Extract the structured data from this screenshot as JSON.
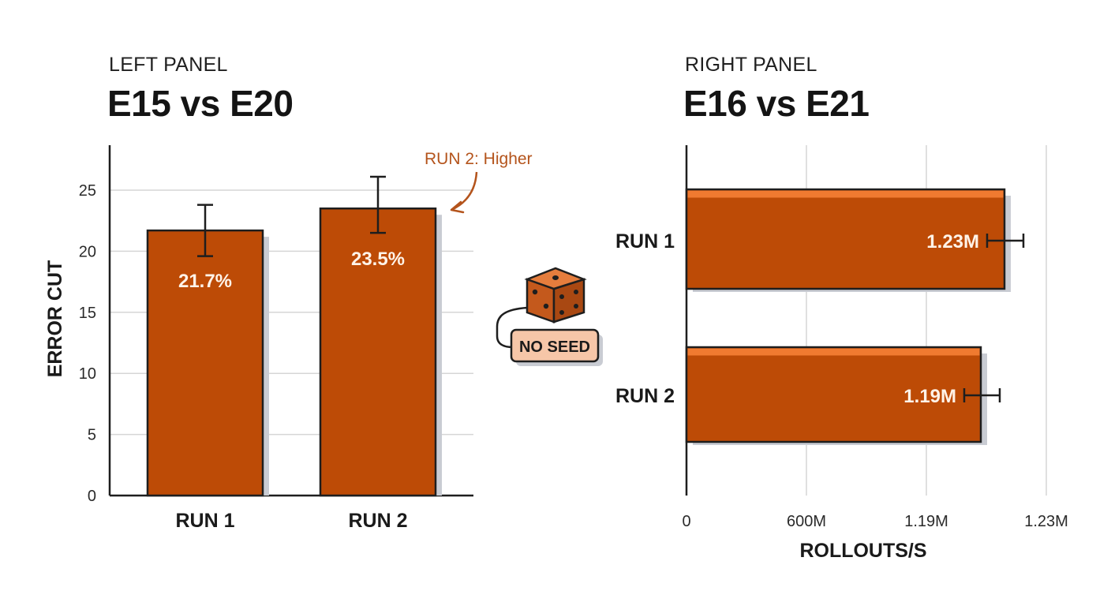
{
  "colors": {
    "bar": "#bd4b06",
    "bar_highlight": "#f07a30",
    "bar_outline": "#1e1e1e",
    "shadow": "#c9ccd3",
    "grid": "#d6d6d6",
    "annotation": "#b4541c",
    "badge_fill": "#f6c6a8",
    "dice": "#d4692c"
  },
  "left_panel": {
    "kicker": "LEFT PANEL",
    "title": "E15 vs E20"
  },
  "right_panel": {
    "kicker": "RIGHT PANEL",
    "title": "E16 vs E21"
  },
  "annotation": {
    "text": "RUN 2: Higher"
  },
  "badge": {
    "text": "NO SEED",
    "icon": "dice-icon"
  },
  "chart_data": [
    {
      "type": "bar",
      "categories": [
        "RUN 1",
        "RUN 2"
      ],
      "values": [
        21.7,
        23.5
      ],
      "error": [
        [
          19.6,
          23.8
        ],
        [
          21.5,
          26.1
        ]
      ],
      "labels": [
        "21.7%",
        "23.5%"
      ],
      "ylabel": "ERROR CUT",
      "yticks": [
        "0",
        "5",
        "10",
        "15",
        "20",
        "25"
      ],
      "ylim": [
        0,
        29
      ],
      "grid": true
    },
    {
      "type": "bar",
      "orientation": "horizontal",
      "categories": [
        "RUN 1",
        "RUN 2"
      ],
      "labels": [
        "1.23M",
        "1.19M"
      ],
      "xlabel": "ROLLOUTS/S",
      "xticks": [
        "0",
        "600M",
        "1.19M",
        "1.23M"
      ],
      "grid": true
    }
  ]
}
